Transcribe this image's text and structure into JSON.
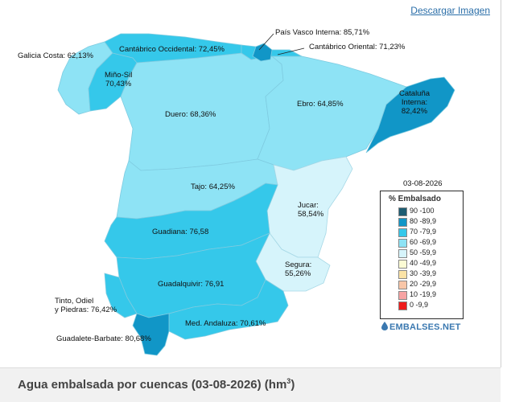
{
  "header": {
    "download_label": "Descargar Imagen"
  },
  "map": {
    "date": "03-08-2026",
    "basins": [
      {
        "id": "galicia-costa",
        "label": "Galicia Costa: 62,13%",
        "value": 62.13,
        "color": "#8ee3f5"
      },
      {
        "id": "mino-sil",
        "label": "Miño-Sil\n70,43%",
        "value": 70.43,
        "color": "#35c8ea"
      },
      {
        "id": "cantabrico-occidental",
        "label": "Cantábrico Occidental: 72,45%",
        "value": 72.45,
        "color": "#35c8ea"
      },
      {
        "id": "pais-vasco-interna",
        "label": "País Vasco Interna: 85,71%",
        "value": 85.71,
        "color": "#1196c7"
      },
      {
        "id": "cantabrico-oriental",
        "label": "Cantábrico Oriental: 71,23%",
        "value": 71.23,
        "color": "#35c8ea"
      },
      {
        "id": "duero",
        "label": "Duero: 68,36%",
        "value": 68.36,
        "color": "#8ee3f5"
      },
      {
        "id": "ebro",
        "label": "Ebro: 64,85%",
        "value": 64.85,
        "color": "#8ee3f5"
      },
      {
        "id": "cataluna-interna",
        "label": "Cataluña\nInterna:\n82,42%",
        "value": 82.42,
        "color": "#1196c7"
      },
      {
        "id": "tajo",
        "label": "Tajo: 64,25%",
        "value": 64.25,
        "color": "#8ee3f5"
      },
      {
        "id": "jucar",
        "label": "Jucar:\n58,54%",
        "value": 58.54,
        "color": "#d6f4fb"
      },
      {
        "id": "guadiana",
        "label": "Guadiana: 76,58",
        "value": 76.58,
        "color": "#35c8ea"
      },
      {
        "id": "segura",
        "label": "Segura:\n55,26%",
        "value": 55.26,
        "color": "#d6f4fb"
      },
      {
        "id": "guadalquivir",
        "label": "Guadalquivir: 76,91",
        "value": 76.91,
        "color": "#35c8ea"
      },
      {
        "id": "tinto-odiel-piedras",
        "label": "Tinto, Odiel\ny Piedras: 76,42%",
        "value": 76.42,
        "color": "#35c8ea"
      },
      {
        "id": "med-andaluza",
        "label": "Med. Andaluza: 70,61%",
        "value": 70.61,
        "color": "#35c8ea"
      },
      {
        "id": "guadalete-barbate",
        "label": "Guadalete-Barbate: 80,68%",
        "value": 80.68,
        "color": "#1196c7"
      }
    ]
  },
  "legend": {
    "title": "% Embalsado",
    "items": [
      {
        "range": "90 -100",
        "color": "#1d5d73"
      },
      {
        "range": "80 -89,9",
        "color": "#1196c7"
      },
      {
        "range": "70 -79,9",
        "color": "#35c8ea"
      },
      {
        "range": "60 -69,9",
        "color": "#8ee3f5"
      },
      {
        "range": "50 -59,9",
        "color": "#d6f4fb"
      },
      {
        "range": "40 -49,9",
        "color": "#fbfbd4"
      },
      {
        "range": "30 -39,9",
        "color": "#fbe3a6"
      },
      {
        "range": "20 -29,9",
        "color": "#f8c6a8"
      },
      {
        "range": "10 -19,9",
        "color": "#f7a3a3"
      },
      {
        "range": "0 -9,9",
        "color": "#ee1c1c"
      }
    ]
  },
  "brand": {
    "logo_text": "EMBALSES.NET"
  },
  "footer": {
    "title": "Agua embalsada por cuencas (03-08-2026) (hm",
    "title_sup": "3",
    "title_end": ")"
  }
}
